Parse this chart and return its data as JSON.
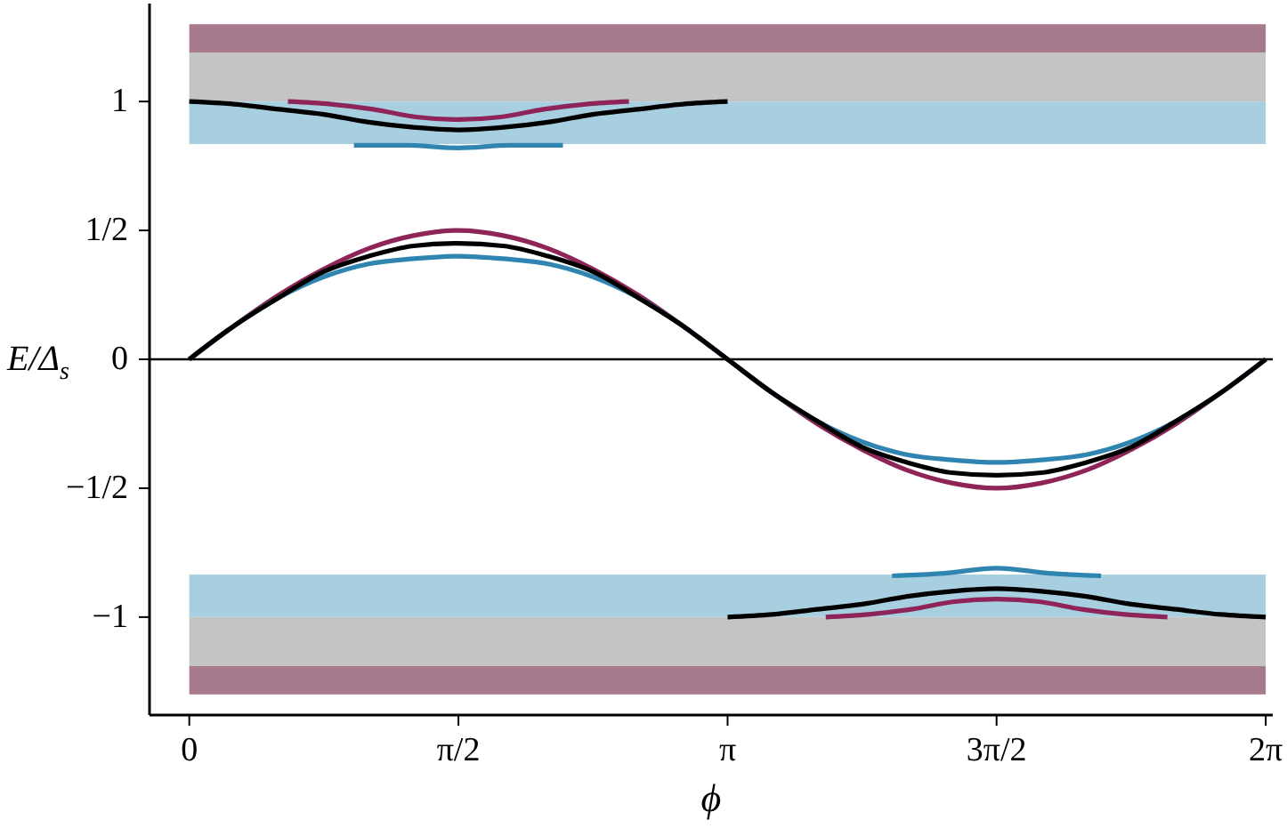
{
  "chart_data": {
    "type": "line",
    "xlabel": "ϕ",
    "ylabel": "E/Δ$_{s}$",
    "xlim": [
      -0.232,
      6.324
    ],
    "ylim": [
      -1.38,
      1.38
    ],
    "xticks": [
      {
        "value": 0,
        "label": "0"
      },
      {
        "value": 1.571,
        "label": "π/2"
      },
      {
        "value": 3.142,
        "label": "π"
      },
      {
        "value": 4.712,
        "label": "3π/2"
      },
      {
        "value": 6.283,
        "label": "2π"
      }
    ],
    "yticks": [
      {
        "value": -1,
        "label": "−1"
      },
      {
        "value": -0.5,
        "label": "−1/2"
      },
      {
        "value": 0,
        "label": "0"
      },
      {
        "value": 0.5,
        "label": "1/2"
      },
      {
        "value": 1,
        "label": "1"
      }
    ],
    "grid": false,
    "line_style": "solid",
    "marker": "none",
    "ref_lines": [
      {
        "axis": "y",
        "value": 0,
        "color": "#000000"
      }
    ],
    "bands": [
      {
        "axis": "y",
        "from": 1.19,
        "to": 1.3,
        "color": "#a67a8c"
      },
      {
        "axis": "y",
        "from": 1.0,
        "to": 1.19,
        "color": "#c4c4c4"
      },
      {
        "axis": "y",
        "from": 0.835,
        "to": 1.0,
        "color": "#a8cfe0"
      },
      {
        "axis": "y",
        "from": -1.0,
        "to": -0.835,
        "color": "#a8cfe0"
      },
      {
        "axis": "y",
        "from": -1.19,
        "to": -1.0,
        "color": "#c4c4c4"
      },
      {
        "axis": "y",
        "from": -1.3,
        "to": -1.19,
        "color": "#a67a8c"
      }
    ],
    "series": [
      {
        "color": "#8e2457",
        "x": [
          0,
          0.262,
          0.524,
          0.785,
          1.047,
          1.309,
          1.571,
          1.833,
          2.094,
          2.356,
          2.618,
          2.88,
          3.142,
          3.403,
          3.665,
          3.927,
          4.189,
          4.451,
          4.712,
          4.974,
          5.236,
          5.498,
          5.76,
          6.021,
          6.283
        ],
        "values": [
          0,
          0.13,
          0.25,
          0.35,
          0.43,
          0.48,
          0.5,
          0.48,
          0.43,
          0.35,
          0.25,
          0.13,
          0,
          -0.13,
          -0.25,
          -0.35,
          -0.43,
          -0.48,
          -0.5,
          -0.48,
          -0.43,
          -0.35,
          -0.25,
          -0.13,
          0
        ]
      },
      {
        "color": "#2f85b0",
        "x": [
          0,
          0.262,
          0.524,
          0.785,
          1.047,
          1.309,
          1.571,
          1.833,
          2.094,
          2.356,
          2.618,
          2.88,
          3.142,
          3.403,
          3.665,
          3.927,
          4.189,
          4.451,
          4.712,
          4.974,
          5.236,
          5.498,
          5.76,
          6.021,
          6.283
        ],
        "values": [
          0,
          0.13,
          0.24,
          0.32,
          0.37,
          0.39,
          0.4,
          0.39,
          0.37,
          0.32,
          0.24,
          0.13,
          0,
          -0.13,
          -0.24,
          -0.32,
          -0.37,
          -0.39,
          -0.4,
          -0.39,
          -0.37,
          -0.32,
          -0.24,
          -0.13,
          0
        ]
      },
      {
        "color": "#000000",
        "x": [
          0,
          0.262,
          0.524,
          0.785,
          1.047,
          1.309,
          1.571,
          1.833,
          2.094,
          2.356,
          2.618,
          2.88,
          3.142,
          3.403,
          3.665,
          3.927,
          4.189,
          4.451,
          4.712,
          4.974,
          5.236,
          5.498,
          5.76,
          6.021,
          6.283
        ],
        "values": [
          0,
          0.13,
          0.24,
          0.34,
          0.4,
          0.44,
          0.45,
          0.44,
          0.4,
          0.34,
          0.24,
          0.13,
          0,
          -0.13,
          -0.24,
          -0.34,
          -0.4,
          -0.44,
          -0.45,
          -0.44,
          -0.4,
          -0.34,
          -0.24,
          -0.13,
          0
        ]
      },
      {
        "color": "#000000",
        "x": [
          0,
          0.262,
          0.524,
          0.785,
          1.047,
          1.309,
          1.571,
          1.833,
          2.094,
          2.356,
          2.618,
          2.88,
          3.142
        ],
        "values": [
          1,
          0.99,
          0.97,
          0.95,
          0.92,
          0.9,
          0.89,
          0.9,
          0.92,
          0.95,
          0.97,
          0.99,
          1
        ]
      },
      {
        "color": "#8e2457",
        "x": [
          0.576,
          0.825,
          1.073,
          1.322,
          1.571,
          1.82,
          2.068,
          2.317,
          2.566
        ],
        "values": [
          1,
          0.99,
          0.97,
          0.94,
          0.93,
          0.94,
          0.97,
          0.99,
          1
        ]
      },
      {
        "color": "#2f85b0",
        "x": [
          0.961,
          1.266,
          1.571,
          1.876,
          2.181
        ],
        "values": [
          0.83,
          0.83,
          0.82,
          0.83,
          0.83
        ]
      },
      {
        "color": "#000000",
        "x": [
          3.142,
          3.403,
          3.665,
          3.927,
          4.189,
          4.451,
          4.712,
          4.974,
          5.236,
          5.498,
          5.76,
          6.021,
          6.283
        ],
        "values": [
          -1,
          -0.99,
          -0.97,
          -0.95,
          -0.92,
          -0.9,
          -0.89,
          -0.9,
          -0.92,
          -0.95,
          -0.97,
          -0.99,
          -1
        ]
      },
      {
        "color": "#8e2457",
        "x": [
          3.715,
          3.964,
          4.213,
          4.463,
          4.712,
          4.961,
          5.211,
          5.46,
          5.709
        ],
        "values": [
          -1,
          -0.99,
          -0.97,
          -0.94,
          -0.93,
          -0.94,
          -0.97,
          -0.99,
          -1
        ]
      },
      {
        "color": "#2f85b0",
        "x": [
          4.102,
          4.407,
          4.712,
          5.017,
          5.322
        ],
        "values": [
          -0.84,
          -0.83,
          -0.81,
          -0.83,
          -0.84
        ]
      }
    ]
  }
}
